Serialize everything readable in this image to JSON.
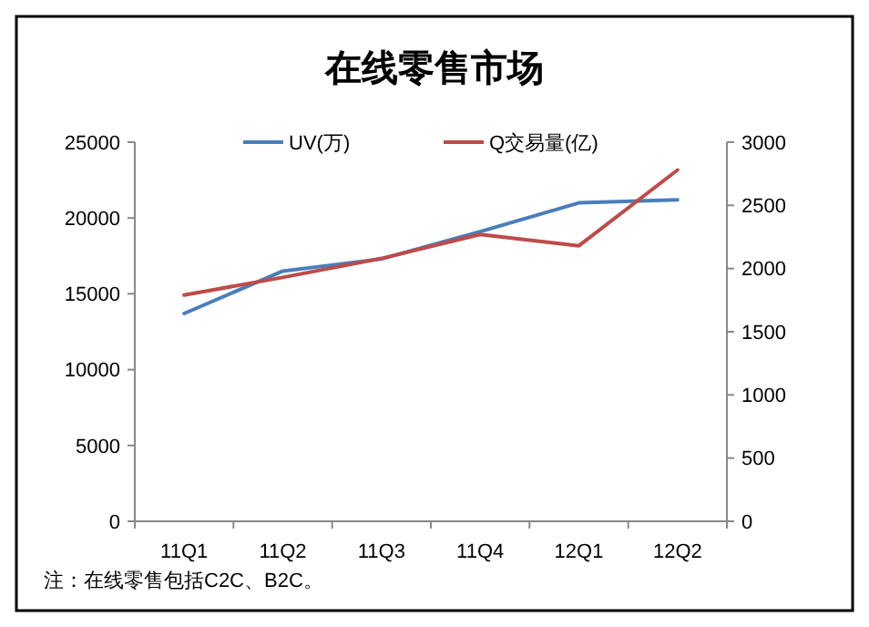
{
  "chart_data": {
    "type": "line",
    "title": "在线零售市场",
    "categories": [
      "11Q1",
      "11Q2",
      "11Q3",
      "11Q4",
      "12Q1",
      "12Q2"
    ],
    "series": [
      {
        "name": "UV(万)",
        "color": "#4a7ebb",
        "values": [
          13700,
          16500,
          17300,
          19100,
          21000,
          21200
        ]
      },
      {
        "name": "Q交易量(亿)",
        "color": "#be4b48",
        "values": [
          1790,
          1930,
          2080,
          2270,
          2180,
          2780
        ],
        "axis": "y2"
      }
    ],
    "ylim": [
      0,
      25000
    ],
    "yticks": [
      0,
      5000,
      10000,
      15000,
      20000,
      25000
    ],
    "y2lim": [
      0,
      3000
    ],
    "y2ticks": [
      0,
      500,
      1000,
      1500,
      2000,
      2500,
      3000
    ],
    "legend": "top",
    "grid": false,
    "marker": "none",
    "line_style": "solid",
    "annotations": [
      "注：在线零售包括C2C、B2C。"
    ]
  }
}
